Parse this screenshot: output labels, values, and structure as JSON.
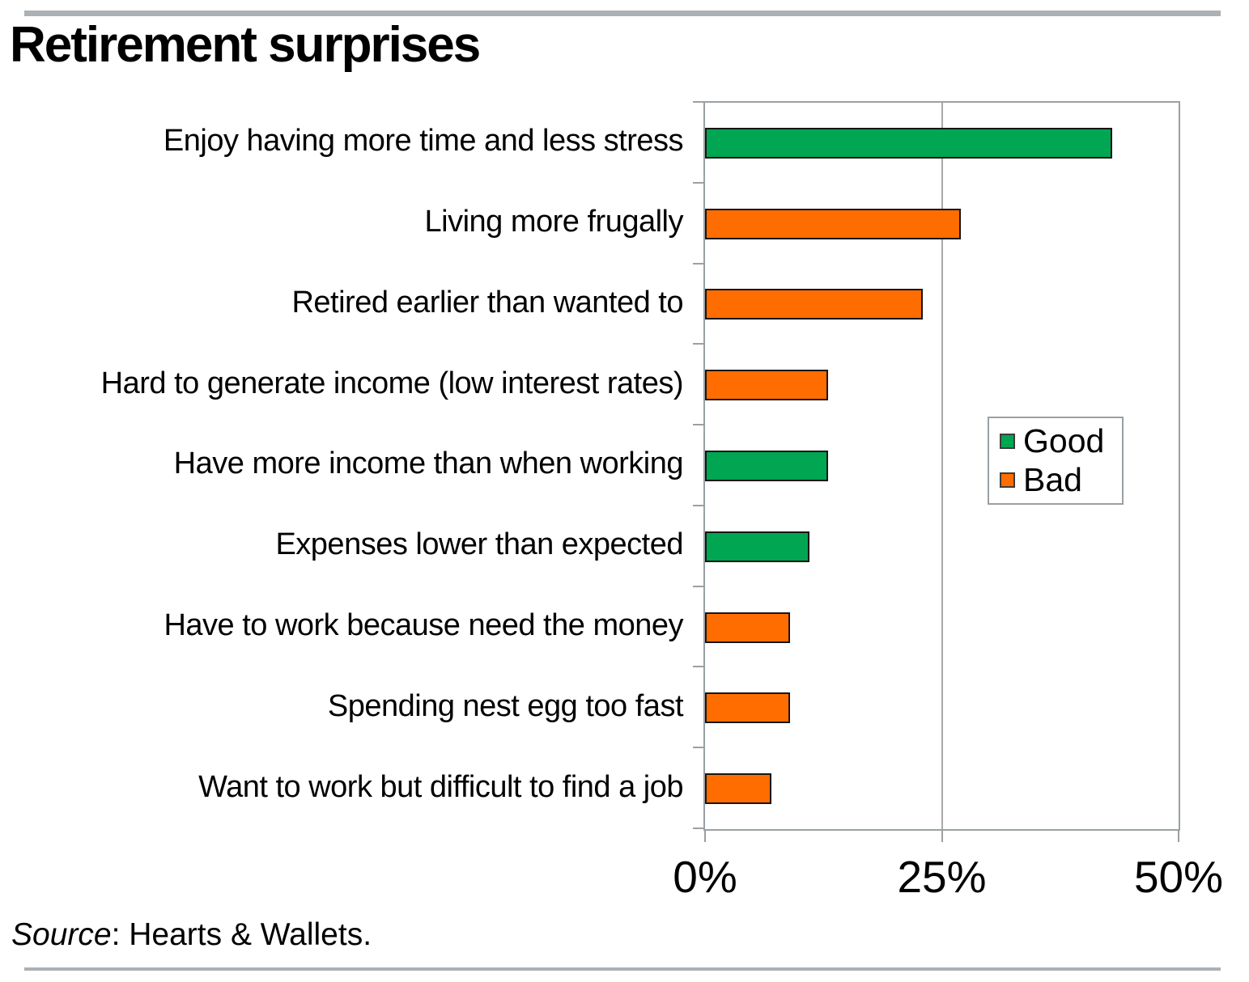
{
  "page": {
    "title": "Retirement surprises",
    "source_prefix": "Source",
    "source_rest": ": Hearts & Wallets."
  },
  "chart_data": {
    "type": "bar",
    "orientation": "horizontal",
    "title": "Retirement surprises",
    "xlim": [
      0,
      50
    ],
    "x_tick_labels": [
      "0%",
      "25%",
      "50%"
    ],
    "x_tick_values": [
      0,
      25,
      50
    ],
    "gridline_at": 25,
    "categories": [
      "Enjoy having more time and less stress",
      "Living more frugally",
      "Retired earlier than wanted to",
      "Hard to generate income (low interest rates)",
      "Have more income than when working",
      "Expenses lower than expected",
      "Have to work because need the money",
      "Spending nest egg too fast",
      "Want to work but difficult to find a job"
    ],
    "values": [
      43,
      27,
      23,
      13,
      13,
      11,
      9,
      9,
      7
    ],
    "series_of_bar": [
      "Good",
      "Bad",
      "Bad",
      "Bad",
      "Good",
      "Good",
      "Bad",
      "Bad",
      "Bad"
    ],
    "legend": [
      {
        "label": "Good",
        "color": "#00A651"
      },
      {
        "label": "Bad",
        "color": "#FF6D00"
      }
    ],
    "legend_position": "middle-right",
    "source": "Source: Hearts & Wallets."
  }
}
